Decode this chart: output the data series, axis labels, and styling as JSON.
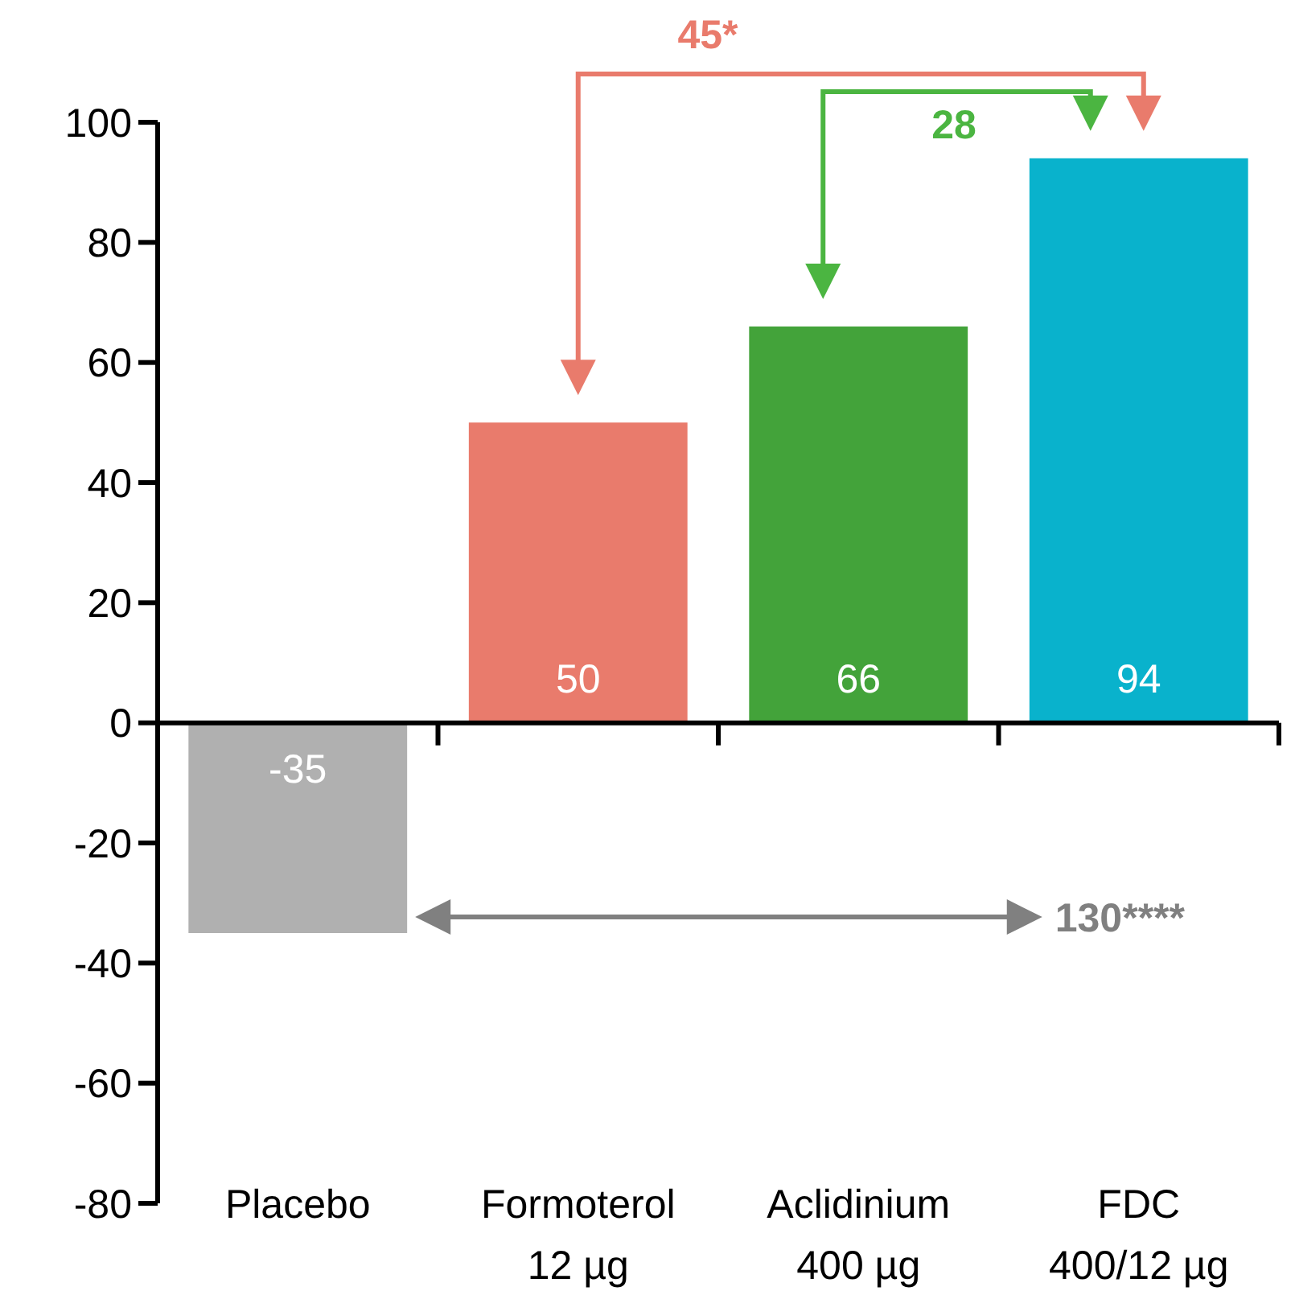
{
  "chart_data": {
    "type": "bar",
    "categories": [
      "Placebo",
      "Formoterol\n12 µg",
      "Aclidinium\n400 µg",
      "FDC\n400/12 µg"
    ],
    "values": [
      -35,
      50,
      66,
      94
    ],
    "colors": [
      "#b0b0b0",
      "#e97b6c",
      "#43a33a",
      "#09b2cc"
    ],
    "ylim": [
      -80,
      100
    ],
    "yticks": [
      -80,
      -60,
      -40,
      -20,
      0,
      20,
      40,
      60,
      80,
      100
    ],
    "data_labels": true,
    "annotations": [
      "45*",
      "28",
      "130****"
    ]
  }
}
